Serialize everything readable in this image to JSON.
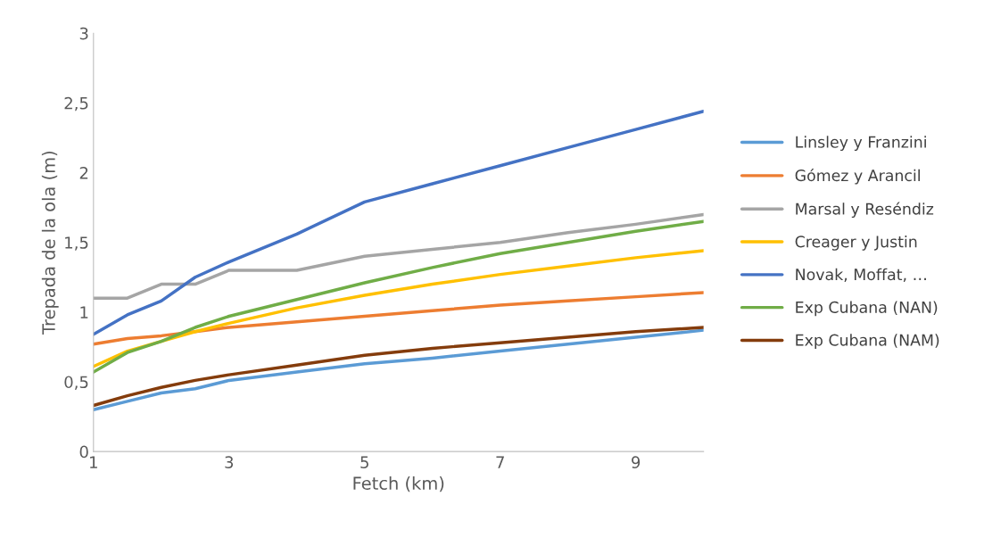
{
  "chart_data": {
    "type": "line",
    "xlabel": "Fetch (km)",
    "ylabel": "Trepada de la ola (m)",
    "x": [
      1,
      1.5,
      2,
      2.5,
      3,
      4,
      5,
      6,
      7,
      8,
      9,
      10
    ],
    "xlim": [
      1,
      10
    ],
    "xticks": [
      1,
      3,
      5,
      7,
      9
    ],
    "ylim": [
      0,
      3
    ],
    "yticks": [
      0,
      {
        "value": 0.5,
        "label": "0,5"
      },
      1,
      {
        "value": 1.5,
        "label": "1,5"
      },
      2,
      {
        "value": 2.5,
        "label": "2,5"
      },
      3
    ],
    "grid": false,
    "legend": "right",
    "marker": "none",
    "line_style": "solid",
    "series": [
      {
        "name": "Linsley y Franzini",
        "color": "#5b9bd5",
        "values": [
          0.3,
          0.36,
          0.42,
          0.45,
          0.51,
          0.57,
          0.63,
          0.67,
          0.72,
          0.77,
          0.82,
          0.87
        ]
      },
      {
        "name": "Gómez y Arancil",
        "color": "#ed7d31",
        "values": [
          0.77,
          0.81,
          0.83,
          0.86,
          0.89,
          0.93,
          0.97,
          1.01,
          1.05,
          1.08,
          1.11,
          1.14
        ]
      },
      {
        "name": "Marsal y Reséndiz",
        "color": "#a5a5a5",
        "values": [
          1.1,
          1.1,
          1.2,
          1.2,
          1.3,
          1.3,
          1.4,
          1.45,
          1.5,
          1.57,
          1.63,
          1.7
        ]
      },
      {
        "name": "Creager y Justin",
        "color": "#ffc000",
        "values": [
          0.61,
          0.72,
          0.79,
          0.86,
          0.92,
          1.03,
          1.12,
          1.2,
          1.27,
          1.33,
          1.39,
          1.44
        ]
      },
      {
        "name": "Novak, Moffat, …",
        "color": "#4472c4",
        "values": [
          0.84,
          0.98,
          1.08,
          1.25,
          1.36,
          1.56,
          1.79,
          1.92,
          2.05,
          2.18,
          2.31,
          2.44
        ]
      },
      {
        "name": "Exp Cubana (NAN)",
        "color": "#70ad47",
        "values": [
          0.57,
          0.71,
          0.79,
          0.89,
          0.97,
          1.09,
          1.21,
          1.32,
          1.42,
          1.5,
          1.58,
          1.65
        ]
      },
      {
        "name": "Exp Cubana (NAM)",
        "color": "#843c0c",
        "values": [
          0.33,
          0.4,
          0.46,
          0.51,
          0.55,
          0.62,
          0.69,
          0.74,
          0.78,
          0.82,
          0.86,
          0.89
        ]
      }
    ]
  }
}
